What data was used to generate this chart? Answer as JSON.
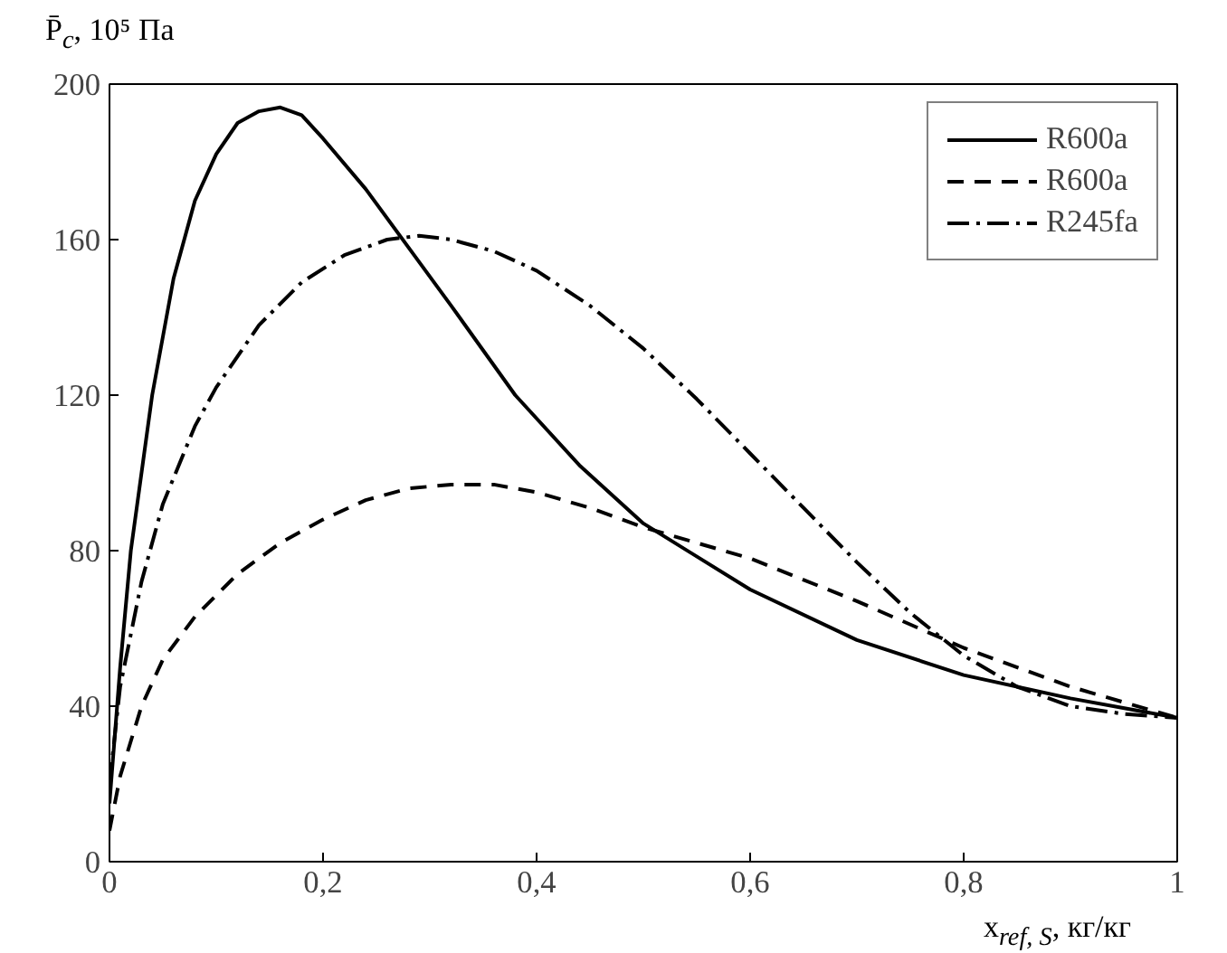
{
  "chart_data": {
    "type": "line",
    "xlabel": "x$_{ref, S}$, кг/кг",
    "ylabel": "P̄$_{c}$, 10⁵ Па",
    "xlim": [
      0,
      1
    ],
    "ylim": [
      0,
      200
    ],
    "xticks": [
      0,
      {
        "value": 0.2,
        "label": "0,2"
      },
      {
        "value": 0.4,
        "label": "0,4"
      },
      {
        "value": 0.6,
        "label": "0,6"
      },
      {
        "value": 0.8,
        "label": "0,8"
      },
      1
    ],
    "yticks": [
      0,
      40,
      80,
      120,
      160,
      200
    ],
    "grid": false,
    "legend": "top right",
    "series": [
      {
        "name": "R600a",
        "color": "#000000",
        "line_style": "solid",
        "x": [
          0,
          0.01,
          0.02,
          0.04,
          0.06,
          0.08,
          0.1,
          0.12,
          0.14,
          0.16,
          0.18,
          0.2,
          0.24,
          0.28,
          0.32,
          0.38,
          0.44,
          0.5,
          0.6,
          0.7,
          0.8,
          0.9,
          1
        ],
        "values": [
          15,
          50,
          80,
          120,
          150,
          170,
          182,
          190,
          193,
          194,
          192,
          186,
          173,
          158,
          143,
          120,
          102,
          87,
          70,
          57,
          48,
          42,
          37
        ]
      },
      {
        "name": "R600a",
        "color": "#000000",
        "line_style": "dashed",
        "x": [
          0,
          0.01,
          0.03,
          0.05,
          0.08,
          0.12,
          0.16,
          0.2,
          0.24,
          0.28,
          0.32,
          0.36,
          0.4,
          0.45,
          0.5,
          0.6,
          0.7,
          0.8,
          0.9,
          1
        ],
        "values": [
          8,
          22,
          40,
          52,
          63,
          74,
          82,
          88,
          93,
          96,
          97,
          97,
          95,
          91,
          86,
          78,
          67,
          55,
          45,
          37
        ]
      },
      {
        "name": "R245fa",
        "color": "#000000",
        "line_style": "dashdot",
        "x": [
          0,
          0.01,
          0.03,
          0.05,
          0.08,
          0.1,
          0.14,
          0.18,
          0.22,
          0.26,
          0.29,
          0.32,
          0.36,
          0.4,
          0.45,
          0.5,
          0.55,
          0.6,
          0.65,
          0.7,
          0.75,
          0.8,
          0.85,
          0.9,
          0.95,
          1
        ],
        "values": [
          20,
          45,
          72,
          92,
          112,
          122,
          138,
          149,
          156,
          160,
          161,
          160,
          157,
          152,
          143,
          132,
          119,
          105,
          91,
          77,
          64,
          53,
          45,
          40,
          38,
          37
        ]
      }
    ]
  }
}
